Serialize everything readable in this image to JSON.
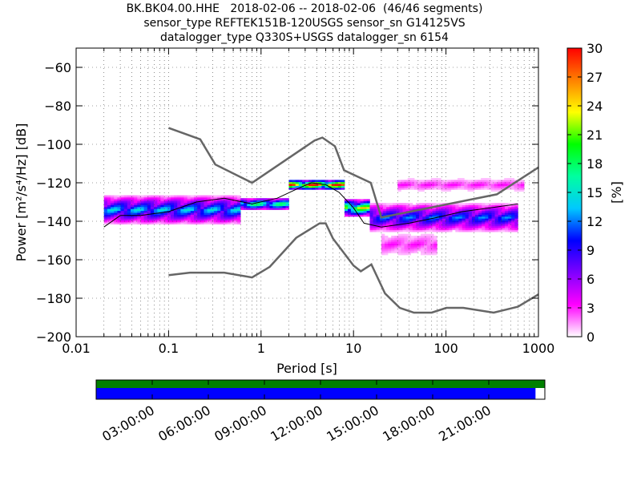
{
  "title": {
    "line1": "BK.BK04.00.HHE   2018-02-06 -- 2018-02-06  (46/46 segments)",
    "line2": "sensor_type REFTEK151B-120USGS sensor_sn G14125VS",
    "line3": "datalogger_type Q330S+USGS datalogger_sn 6154"
  },
  "chart_data": [
    {
      "type": "heatmap",
      "xlabel": "Period [s]",
      "ylabel": "Power [m²/s⁴/Hz] [dB]",
      "x_scale": "log",
      "xlim": [
        0.01,
        1000
      ],
      "ylim": [
        -200,
        -50
      ],
      "x_ticks": [
        0.01,
        0.1,
        1,
        10,
        100,
        1000
      ],
      "x_tick_labels": [
        "0.01",
        "0.1",
        "1",
        "10",
        "100",
        "1000"
      ],
      "y_ticks": [
        -200,
        -180,
        -160,
        -140,
        -120,
        -100,
        -80,
        -60
      ],
      "y_tick_labels": [
        "−200",
        "−180",
        "−160",
        "−140",
        "−120",
        "−100",
        "−80",
        "−60"
      ],
      "grid": true,
      "colorbar": {
        "label": "[%]",
        "range": [
          0,
          30
        ],
        "ticks": [
          0,
          3,
          6,
          9,
          12,
          15,
          18,
          21,
          24,
          27,
          30
        ],
        "colormap": [
          "#ffffff",
          "#ff00ff",
          "#7f00ff",
          "#0000ff",
          "#00c8ff",
          "#00ffa0",
          "#00ff00",
          "#ffff00",
          "#ff8000",
          "#ff0000"
        ]
      },
      "series": [
        {
          "role": "high noise model",
          "color": "#666666",
          "points": [
            [
              0.1,
              -91.5
            ],
            [
              0.22,
              -97.4
            ],
            [
              0.32,
              -110.5
            ],
            [
              0.8,
              -120
            ],
            [
              3.8,
              -98
            ],
            [
              4.6,
              -96.5
            ],
            [
              6.3,
              -101
            ],
            [
              7.9,
              -113.5
            ],
            [
              15.4,
              -120
            ],
            [
              20,
              -138
            ],
            [
              354.8,
              -126
            ],
            [
              1000,
              -112
            ]
          ]
        },
        {
          "role": "low noise model",
          "color": "#666666",
          "points": [
            [
              0.1,
              -168
            ],
            [
              0.17,
              -166.7
            ],
            [
              0.4,
              -166.7
            ],
            [
              0.8,
              -169.2
            ],
            [
              1.24,
              -163.7
            ],
            [
              2.4,
              -148.6
            ],
            [
              4.3,
              -141.1
            ],
            [
              5,
              -141.1
            ],
            [
              6,
              -149
            ],
            [
              10,
              -163
            ],
            [
              12,
              -166
            ],
            [
              15.6,
              -162.4
            ],
            [
              21.9,
              -177.5
            ],
            [
              31.6,
              -185
            ],
            [
              45,
              -187.5
            ],
            [
              70,
              -187.5
            ],
            [
              101,
              -185
            ],
            [
              154,
              -185
            ],
            [
              328,
              -187.5
            ],
            [
              600,
              -184.4
            ],
            [
              1000,
              -178
            ]
          ]
        },
        {
          "role": "mode",
          "color": "#000000",
          "points": [
            [
              0.02,
              -143
            ],
            [
              0.03,
              -137
            ],
            [
              0.05,
              -137
            ],
            [
              0.1,
              -135
            ],
            [
              0.2,
              -130
            ],
            [
              0.4,
              -128
            ],
            [
              0.8,
              -131
            ],
            [
              1.5,
              -128
            ],
            [
              2.5,
              -123
            ],
            [
              3.5,
              -120
            ],
            [
              5,
              -121
            ],
            [
              7,
              -125
            ],
            [
              10,
              -133
            ],
            [
              13,
              -141
            ],
            [
              20,
              -143
            ],
            [
              40,
              -141
            ],
            [
              80,
              -138
            ],
            [
              150,
              -135
            ],
            [
              300,
              -133
            ],
            [
              600,
              -131
            ]
          ]
        }
      ],
      "density_bands": [
        {
          "x": [
            0.02,
            0.6
          ],
          "center": -134,
          "spread": 7,
          "level": 13
        },
        {
          "x": [
            0.6,
            2
          ],
          "center": -131,
          "spread": 2.5,
          "level": 18
        },
        {
          "x": [
            2,
            8
          ],
          "center": -121,
          "spread": 2,
          "level": 28
        },
        {
          "x": [
            8,
            15
          ],
          "center": -133,
          "spread": 4,
          "level": 22
        },
        {
          "x": [
            15,
            600
          ],
          "center": -138,
          "spread": 7,
          "level": 11
        },
        {
          "x": [
            20,
            80
          ],
          "center": -152,
          "spread": 6,
          "level": 3
        },
        {
          "x": [
            30,
            700
          ],
          "center": -121,
          "spread": 3,
          "level": 3
        }
      ]
    },
    {
      "type": "bar",
      "role": "data availability",
      "time_ticks": [
        "03:00:00",
        "06:00:00",
        "09:00:00",
        "12:00:00",
        "15:00:00",
        "18:00:00",
        "21:00:00"
      ],
      "total_hours": 24,
      "segments": [
        {
          "color": "#008000",
          "start_h": 0,
          "end_h": 24
        }
      ],
      "data": [
        {
          "color": "#0000ff",
          "start_h": 0,
          "end_h": 23.5
        }
      ]
    }
  ]
}
